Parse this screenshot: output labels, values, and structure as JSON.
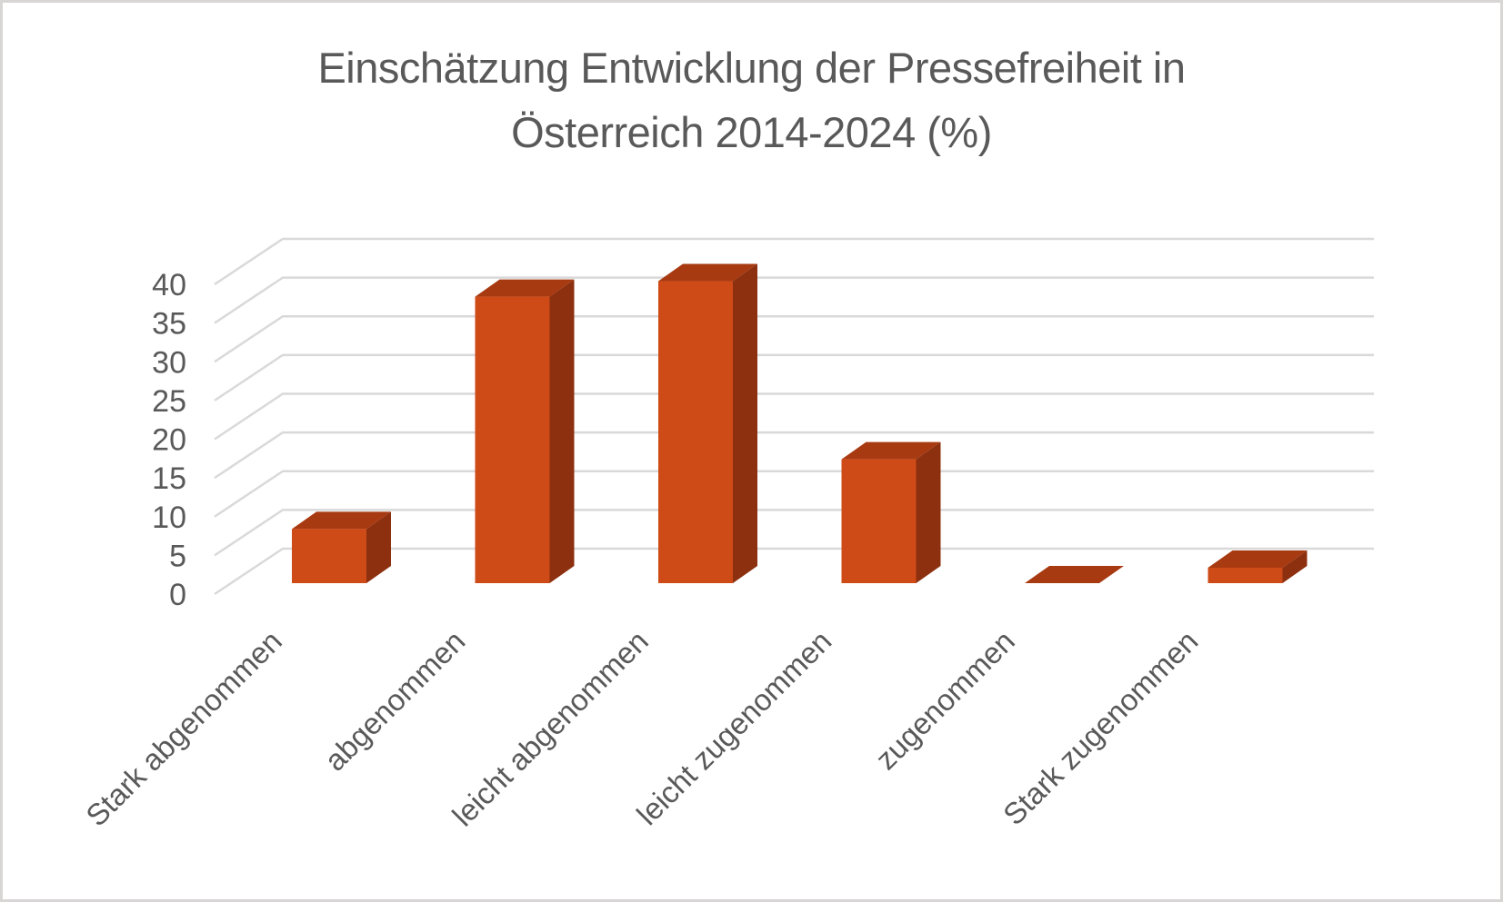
{
  "frame": {
    "background": "#FFFFFF",
    "border_color": "#D8D5D5"
  },
  "chart_data": {
    "type": "bar",
    "style": "3d-column",
    "title": "Einschätzung Entwicklung der Pressefreiheit in Österreich 2014-2024 (%)",
    "title_lines": [
      "Einschätzung Entwicklung der Pressefreiheit in",
      "Österreich 2014-2024 (%)"
    ],
    "categories": [
      "Stark abgenommen",
      "abgenommen",
      "leicht abgenommen",
      "leicht zugenommen",
      "zugenommen",
      "Stark zugenommen"
    ],
    "values": [
      7,
      37,
      39,
      16,
      0,
      2
    ],
    "unit": "%",
    "xlabel": "",
    "ylabel": "",
    "ylim": [
      0,
      40
    ],
    "yticks": [
      0,
      5,
      10,
      15,
      20,
      25,
      30,
      35,
      40
    ],
    "grid": true,
    "legend": "none",
    "x_label_rotation_deg": 45,
    "colors": {
      "bar_front": "#CE4A17",
      "bar_top": "#A83A12",
      "bar_side": "#8C300F",
      "gridline": "#D9D9D9",
      "axis_text": "#595959",
      "title_text": "#595959"
    }
  }
}
